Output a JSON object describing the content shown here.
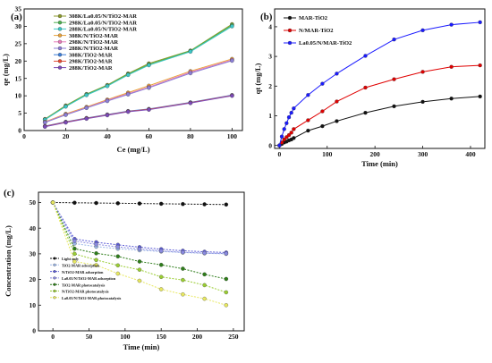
{
  "chart_data": [
    {
      "id": "a",
      "panel_label": "(a)",
      "type": "line",
      "xlabel": "Ce (mg/L)",
      "ylabel": "qe (mg/L)",
      "xlim": [
        0,
        105
      ],
      "ylim": [
        0,
        35
      ],
      "xticks": [
        0,
        20,
        40,
        60,
        80,
        100
      ],
      "yticks": [
        0,
        5,
        10,
        15,
        20,
        25,
        30,
        35
      ],
      "legend_position": "top-left",
      "series": [
        {
          "name": "308K/La0.05/N/TiO2-MAR",
          "color": "#8b9a2b",
          "marker": "circle",
          "x": [
            10,
            20,
            30,
            40,
            50,
            60,
            80,
            100
          ],
          "y": [
            3.3,
            7.2,
            10.5,
            13.1,
            16.4,
            19.3,
            23.0,
            30.6
          ]
        },
        {
          "name": "298K/La0.05/N/TiO2-MAR",
          "color": "#4caf50",
          "marker": "circle",
          "x": [
            10,
            20,
            30,
            40,
            50,
            60,
            80,
            100
          ],
          "y": [
            3.2,
            7.0,
            10.4,
            12.9,
            16.2,
            19.0,
            22.9,
            30.3
          ]
        },
        {
          "name": "288K/La0.05/N/TiO2-MAR",
          "color": "#3cc6c6",
          "marker": "circle",
          "x": [
            10,
            20,
            30,
            40,
            50,
            60,
            80,
            100
          ],
          "y": [
            3.1,
            6.9,
            10.2,
            12.8,
            16.0,
            18.8,
            22.7,
            30.0
          ]
        },
        {
          "name": "308K/N/TiO2-MAR",
          "color": "#e8a23a",
          "marker": "circle",
          "x": [
            10,
            20,
            30,
            40,
            50,
            60,
            80,
            100
          ],
          "y": [
            2.5,
            4.8,
            6.8,
            8.9,
            10.9,
            12.9,
            17.1,
            20.6
          ]
        },
        {
          "name": "298K/N/TiO2-MAR",
          "color": "#e67ab8",
          "marker": "circle",
          "x": [
            10,
            20,
            30,
            40,
            50,
            60,
            80,
            100
          ],
          "y": [
            2.4,
            4.6,
            6.6,
            8.7,
            10.6,
            12.5,
            16.8,
            20.3
          ]
        },
        {
          "name": "288K/N/TiO2-MAR",
          "color": "#8b7fd6",
          "marker": "circle",
          "x": [
            10,
            20,
            30,
            40,
            50,
            60,
            80,
            100
          ],
          "y": [
            2.3,
            4.5,
            6.5,
            8.5,
            10.4,
            12.3,
            16.5,
            20.1
          ]
        },
        {
          "name": "308K/TiO2-MAR",
          "color": "#3b7dd8",
          "marker": "circle",
          "x": [
            10,
            20,
            30,
            40,
            50,
            60,
            80,
            100
          ],
          "y": [
            1.3,
            2.5,
            3.6,
            4.6,
            5.6,
            6.2,
            8.1,
            10.2
          ]
        },
        {
          "name": "298K/TiO2-MAR",
          "color": "#e34a33",
          "marker": "circle",
          "x": [
            10,
            20,
            30,
            40,
            50,
            60,
            80,
            100
          ],
          "y": [
            1.2,
            2.4,
            3.5,
            4.5,
            5.5,
            6.1,
            8.0,
            10.1
          ]
        },
        {
          "name": "288K/TiO2-MAR",
          "color": "#7b4ab8",
          "marker": "circle",
          "x": [
            10,
            20,
            30,
            40,
            50,
            60,
            80,
            100
          ],
          "y": [
            1.1,
            2.3,
            3.4,
            4.4,
            5.4,
            6.0,
            7.9,
            10.0
          ]
        }
      ]
    },
    {
      "id": "b",
      "panel_label": "(b)",
      "type": "line",
      "xlabel": "Time (min)",
      "ylabel": "qt (mg/L)",
      "xlim": [
        -10,
        430
      ],
      "ylim": [
        -0.1,
        4.6
      ],
      "xticks": [
        0,
        100,
        200,
        300,
        400
      ],
      "yticks": [
        0,
        1,
        2,
        3,
        4
      ],
      "legend_position": "top-left",
      "series": [
        {
          "name": "MAR-TiO2",
          "color": "#111111",
          "marker": "circle",
          "x": [
            0,
            5,
            10,
            15,
            20,
            25,
            30,
            60,
            90,
            120,
            180,
            240,
            300,
            360,
            420
          ],
          "y": [
            0,
            0.05,
            0.1,
            0.13,
            0.17,
            0.2,
            0.25,
            0.5,
            0.65,
            0.82,
            1.1,
            1.32,
            1.47,
            1.58,
            1.65
          ]
        },
        {
          "name": "N/MAR-TiO2",
          "color": "#e00000",
          "marker": "circle",
          "x": [
            0,
            5,
            10,
            15,
            20,
            25,
            30,
            60,
            90,
            120,
            180,
            240,
            300,
            360,
            420
          ],
          "y": [
            0,
            0.1,
            0.2,
            0.28,
            0.35,
            0.43,
            0.55,
            0.85,
            1.15,
            1.48,
            1.95,
            2.23,
            2.48,
            2.65,
            2.7
          ]
        },
        {
          "name": "La0.05/N/MAR-TiO2",
          "color": "#1a1aff",
          "marker": "circle",
          "x": [
            0,
            5,
            10,
            15,
            20,
            25,
            30,
            60,
            90,
            120,
            180,
            240,
            300,
            360,
            420
          ],
          "y": [
            0,
            0.3,
            0.55,
            0.75,
            0.95,
            1.1,
            1.25,
            1.7,
            2.08,
            2.42,
            3.02,
            3.57,
            3.88,
            4.07,
            4.15
          ]
        }
      ]
    },
    {
      "id": "c",
      "panel_label": "(c)",
      "type": "line",
      "xlabel": "Time (min)",
      "ylabel": "Concentration (mg/L)",
      "xlim": [
        -20,
        265
      ],
      "ylim": [
        0,
        54
      ],
      "xticks": [
        0,
        50,
        100,
        150,
        200,
        250
      ],
      "yticks": [
        0,
        10,
        20,
        30,
        40,
        50
      ],
      "legend_position": "bottom-left",
      "series": [
        {
          "name": "Light only",
          "color": "#111111",
          "marker": "circle",
          "x": [
            0,
            30,
            60,
            90,
            120,
            150,
            180,
            210,
            240
          ],
          "y": [
            50,
            49.9,
            49.8,
            49.7,
            49.6,
            49.5,
            49.4,
            49.3,
            49.2
          ]
        },
        {
          "name": "TiO2-MAR adsorption",
          "color": "#9db8e8",
          "marker": "circle",
          "x": [
            0,
            30,
            60,
            90,
            120,
            150,
            180,
            210,
            240
          ],
          "y": [
            50,
            34,
            32.8,
            32,
            31.4,
            30.9,
            30.5,
            30.2,
            30.0
          ]
        },
        {
          "name": "N/TiO2-MAR adsorption",
          "color": "#5b5bd6",
          "marker": "circle",
          "x": [
            0,
            30,
            60,
            90,
            120,
            150,
            180,
            210,
            240
          ],
          "y": [
            50,
            35.8,
            34.5,
            33.5,
            32.6,
            31.8,
            31.2,
            30.8,
            30.5
          ]
        },
        {
          "name": "La0.05/N/TiO2-MAR adsorption",
          "color": "#8a8ae0",
          "marker": "circle",
          "x": [
            0,
            30,
            60,
            90,
            120,
            150,
            180,
            210,
            240
          ],
          "y": [
            50,
            35.0,
            33.7,
            32.7,
            31.9,
            31.1,
            30.6,
            30.3,
            30.1
          ]
        },
        {
          "name": "TiO2-MAR photocatalysis",
          "color": "#2e7d1a",
          "marker": "circle",
          "x": [
            0,
            30,
            60,
            90,
            120,
            150,
            180,
            210,
            240
          ],
          "y": [
            50,
            32.0,
            30.2,
            29.0,
            27.0,
            25.7,
            24.2,
            22.0,
            20.2
          ]
        },
        {
          "name": "N/TiO2-MAR photocatalysis",
          "color": "#9acd32",
          "marker": "circle",
          "x": [
            0,
            30,
            60,
            90,
            120,
            150,
            180,
            210,
            240
          ],
          "y": [
            50,
            30.0,
            27.6,
            25.5,
            23.8,
            21.0,
            19.8,
            17.8,
            15.0
          ]
        },
        {
          "name": "La0.05/N/TiO2-MAR photocatalysis",
          "color": "#e8e860",
          "marker": "circle",
          "x": [
            0,
            30,
            60,
            90,
            120,
            150,
            180,
            210,
            240
          ],
          "y": [
            50,
            27.0,
            25.6,
            22.3,
            19.5,
            16.2,
            14.2,
            12.5,
            10.0
          ]
        }
      ]
    }
  ]
}
